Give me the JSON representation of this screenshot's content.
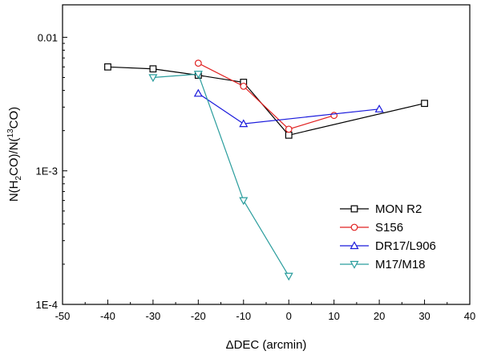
{
  "chart_data": {
    "type": "line",
    "title": "",
    "xlabel": "ΔDEC (arcmin)",
    "ylabel": {
      "prefix": "N(H",
      "sub": "2",
      "mid": "CO)/N(",
      "sup": "13",
      "suffix": "CO)"
    },
    "xlim": [
      -50,
      40
    ],
    "ylim": [
      0.0001,
      0.0175
    ],
    "yscale": "log",
    "x_ticks": [
      -50,
      -40,
      -30,
      -20,
      -10,
      0,
      10,
      20,
      30,
      40
    ],
    "x_tick_labels": [
      "-50",
      "-40",
      "-30",
      "-20",
      "-10",
      "0",
      "10",
      "20",
      "30",
      "40"
    ],
    "y_ticks": [
      0.0001,
      0.001,
      0.01
    ],
    "y_tick_labels": [
      "1E-4",
      "1E-3",
      "0.01"
    ],
    "legend_position": "bottom-right",
    "series": [
      {
        "name": "MON R2",
        "color": "#000000",
        "marker": "square",
        "x": [
          -40,
          -30,
          -20,
          -10,
          0,
          30
        ],
        "values": [
          0.006,
          0.0058,
          0.0052,
          0.0046,
          0.00185,
          0.0032
        ]
      },
      {
        "name": "S156",
        "color": "#e02020",
        "marker": "circle",
        "x": [
          -20,
          -10,
          0,
          10
        ],
        "values": [
          0.0064,
          0.0043,
          0.00205,
          0.0026
        ]
      },
      {
        "name": "DR17/L906",
        "color": "#1a1adc",
        "marker": "triangle-up",
        "x": [
          -20,
          -10,
          20
        ],
        "values": [
          0.0038,
          0.00225,
          0.0029
        ]
      },
      {
        "name": "M17/M18",
        "color": "#2a9d9d",
        "marker": "triangle-down",
        "x": [
          -30,
          -20,
          -10,
          0
        ],
        "values": [
          0.005,
          0.0053,
          0.0006,
          0.000163
        ]
      }
    ]
  }
}
